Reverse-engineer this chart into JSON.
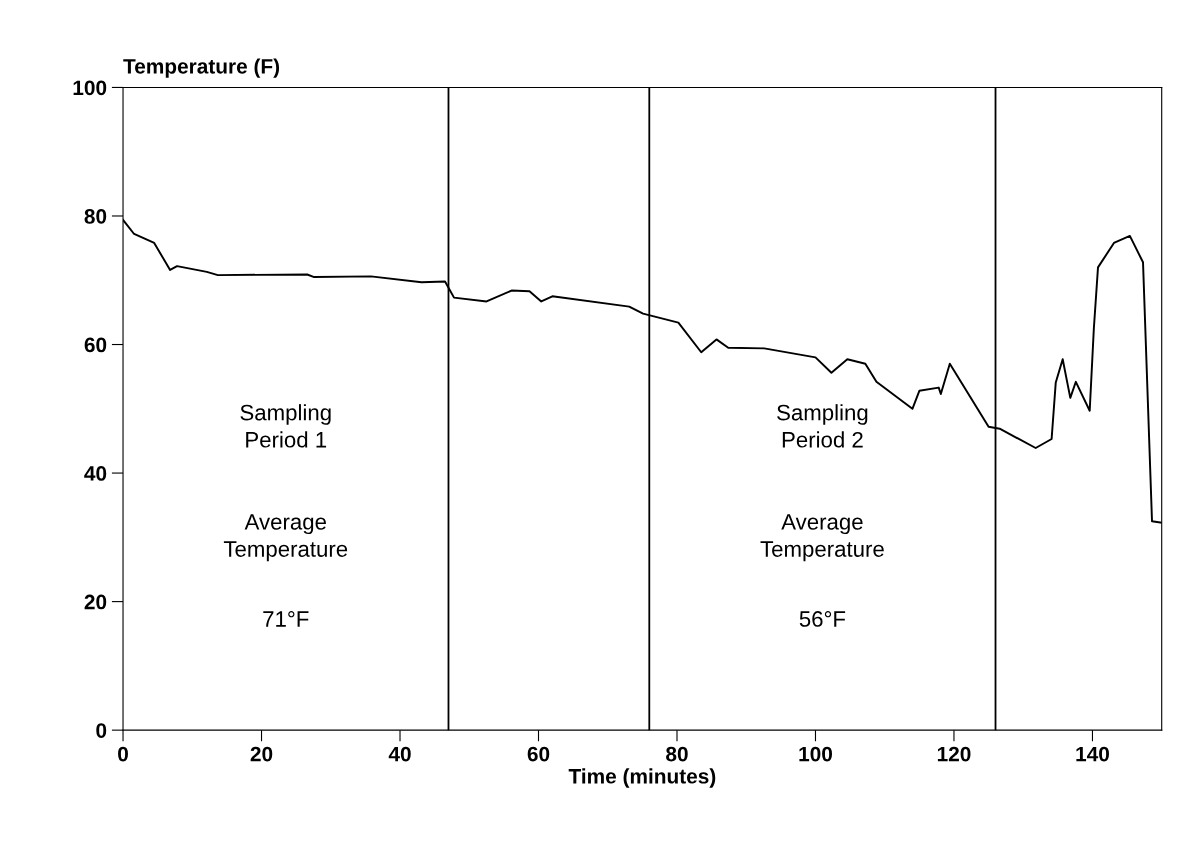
{
  "chart_data": {
    "type": "line",
    "xlabel": "Time (minutes)",
    "ylabel": "Temperature (F)",
    "x": [
      0,
      1.6,
      4.5,
      6.8,
      7.8,
      12.1,
      13.7,
      26.6,
      27.6,
      35.8,
      43.1,
      46.5,
      47.8,
      52.5,
      56.1,
      58.7,
      60.4,
      62.0,
      73.1,
      75.1,
      80.2,
      83.5,
      85.7,
      87.4,
      92.6,
      100.0,
      102.3,
      104.6,
      107.2,
      108.8,
      114.0,
      115.0,
      117.8,
      118.1,
      119.4,
      125.0,
      126.6,
      131.8,
      134.1,
      134.7,
      135.7,
      136.8,
      137.6,
      139.6,
      140.2,
      140.8,
      143.1,
      145.4,
      147.3,
      148.6,
      149.9
    ],
    "series": [
      {
        "color": "#000000",
        "values": [
          79.4,
          77.2,
          75.8,
          71.6,
          72.2,
          71.3,
          70.8,
          70.9,
          70.5,
          70.6,
          69.7,
          69.8,
          67.3,
          66.7,
          68.4,
          68.3,
          66.7,
          67.5,
          65.9,
          64.8,
          63.4,
          58.8,
          60.8,
          59.5,
          59.4,
          58.0,
          55.6,
          57.7,
          57.0,
          54.2,
          50.0,
          52.8,
          53.3,
          52.3,
          57.0,
          47.2,
          46.9,
          43.9,
          45.3,
          54.1,
          57.7,
          51.7,
          54.2,
          49.7,
          62.5,
          72.0,
          75.8,
          76.9,
          72.8,
          32.5,
          32.3
        ]
      }
    ],
    "xlim": [
      0,
      150
    ],
    "xticks": [
      0,
      20,
      40,
      60,
      80,
      100,
      120,
      140
    ],
    "ylim": [
      0,
      100
    ],
    "yticks": [
      0,
      20,
      40,
      60,
      80,
      100
    ],
    "ref_lines": [
      {
        "axis": "x",
        "value": 47,
        "color": "#000000"
      },
      {
        "axis": "x",
        "value": 76,
        "color": "#000000"
      },
      {
        "axis": "x",
        "value": 126,
        "color": "#000000"
      }
    ],
    "annotations": [
      "Sampling\nPeriod 1",
      "Average\nTemperature",
      "71°F",
      "Sampling\nPeriod 2",
      "Average\nTemperature",
      "56°F"
    ],
    "grid": false,
    "legend": false,
    "marker": "none",
    "line_style": "solid"
  }
}
